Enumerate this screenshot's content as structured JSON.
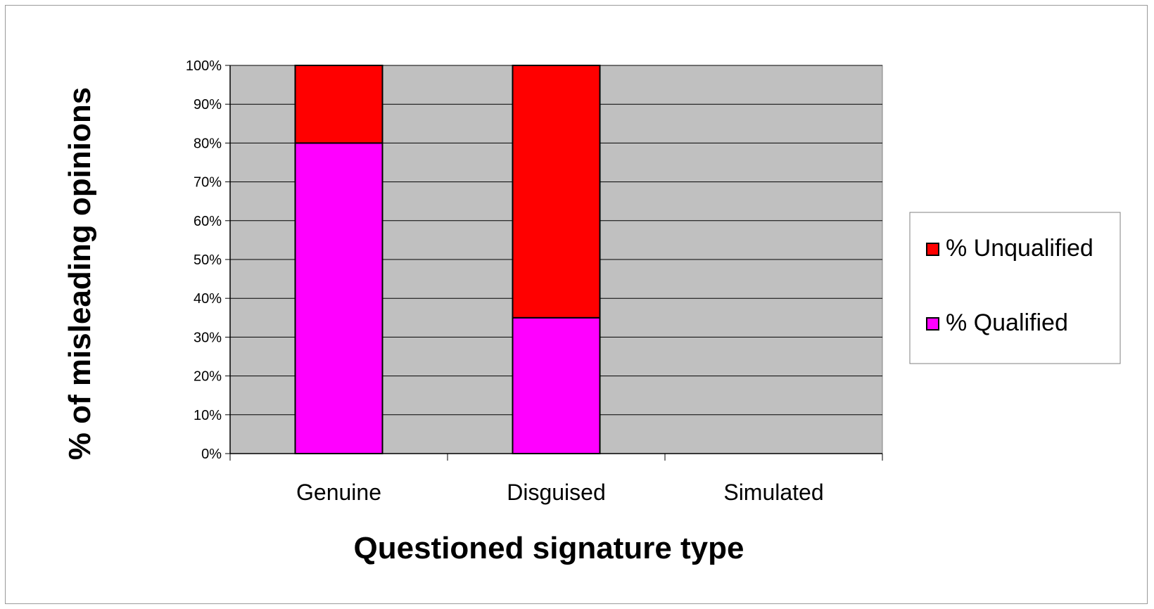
{
  "chart_data": {
    "type": "bar",
    "stacked": true,
    "percent_stacked": true,
    "title": "",
    "xlabel": "Questioned signature type",
    "ylabel": "% of misleading opinions",
    "categories": [
      "Genuine",
      "Disguised",
      "Simulated"
    ],
    "series": [
      {
        "name": "% Qualified",
        "values": [
          80,
          35,
          0
        ],
        "color": "#FF00FF"
      },
      {
        "name": "% Unqualified",
        "values": [
          20,
          65,
          0
        ],
        "color": "#FF0000"
      }
    ],
    "ylim": [
      0,
      100
    ],
    "yticks": [
      "0%",
      "10%",
      "20%",
      "30%",
      "40%",
      "50%",
      "60%",
      "70%",
      "80%",
      "90%",
      "100%"
    ],
    "grid": true,
    "plot_background": "#C0C0C0",
    "legend_position": "right",
    "legend_order": [
      "% Unqualified",
      "% Qualified"
    ]
  }
}
